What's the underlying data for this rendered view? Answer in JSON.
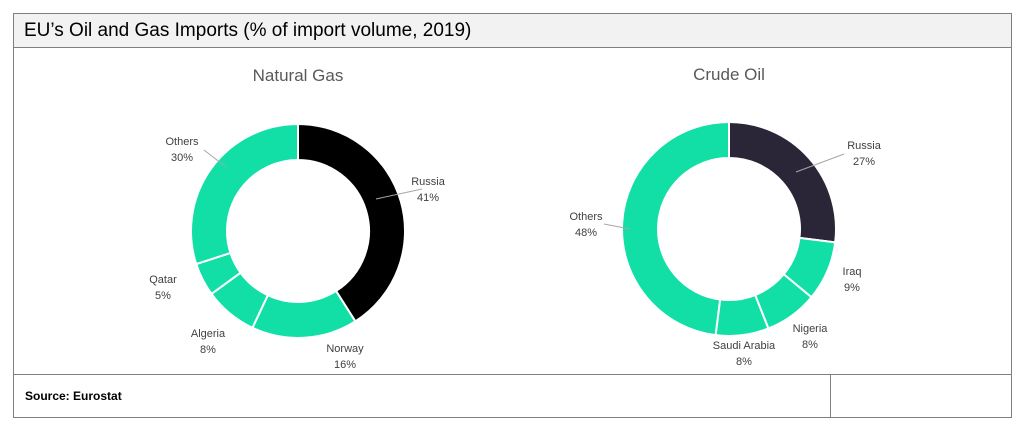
{
  "header": {
    "title": "EU’s Oil and Gas Imports (% of import volume, 2019)"
  },
  "footer": {
    "source_label": "Source:  Eurostat"
  },
  "colors": {
    "russia_gas": "#000000",
    "russia_oil": "#2b2538",
    "others": "#12dfa6",
    "edge": "#ffffff",
    "leader": "#a6a6a6"
  },
  "chart_data": [
    {
      "type": "pie",
      "donut": true,
      "title": "Natural Gas",
      "slices": [
        {
          "label": "Russia",
          "value": 41,
          "value_label": "41%",
          "color": "#000000"
        },
        {
          "label": "Norway",
          "value": 16,
          "value_label": "16%",
          "color": "#12dfa6"
        },
        {
          "label": "Algeria",
          "value": 8,
          "value_label": "8%",
          "color": "#12dfa6"
        },
        {
          "label": "Qatar",
          "value": 5,
          "value_label": "5%",
          "color": "#12dfa6"
        },
        {
          "label": "Others",
          "value": 30,
          "value_label": "30%",
          "color": "#12dfa6"
        }
      ]
    },
    {
      "type": "pie",
      "donut": true,
      "title": "Crude Oil",
      "slices": [
        {
          "label": "Russia",
          "value": 27,
          "value_label": "27%",
          "color": "#2b2538"
        },
        {
          "label": "Iraq",
          "value": 9,
          "value_label": "9%",
          "color": "#12dfa6"
        },
        {
          "label": "Nigeria",
          "value": 8,
          "value_label": "8%",
          "color": "#12dfa6"
        },
        {
          "label": "Saudi Arabia",
          "value": 8,
          "value_label": "8%",
          "color": "#12dfa6"
        },
        {
          "label": "Others",
          "value": 48,
          "value_label": "48%",
          "color": "#12dfa6"
        }
      ]
    }
  ]
}
